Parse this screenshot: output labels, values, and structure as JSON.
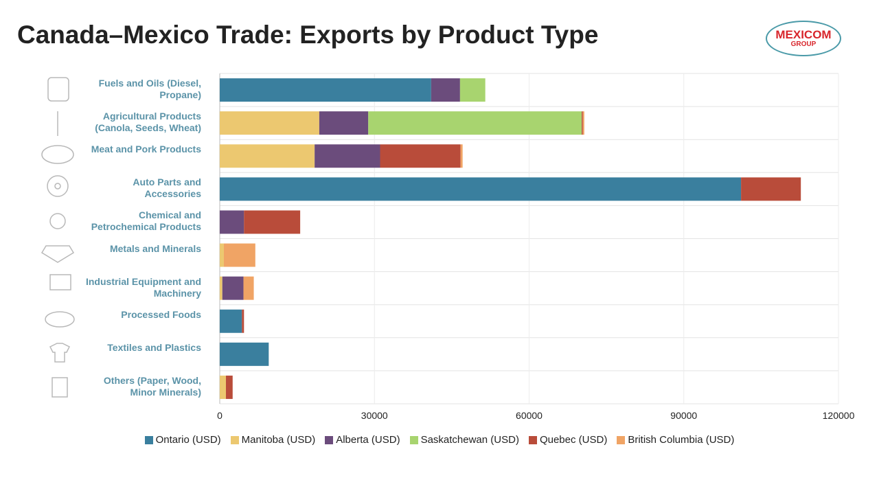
{
  "chart_data": {
    "type": "stacked-bar-horizontal",
    "title": "Canada–Mexico Trade: Exports by Product Type",
    "logo": {
      "name": "MEXICOM",
      "sub": "GROUP"
    },
    "categories": [
      "Fuels and Oils (Diesel, Propane)",
      "Agricultural Products (Canola, Seeds, Wheat)",
      "Meat and Pork Products",
      "Auto Parts and Accessories",
      "Chemical and Petrochemical Products",
      "Metals and Minerals",
      "Industrial Equipment and Machinery",
      "Processed Foods",
      "Textiles and Plastics",
      "Others (Paper, Wood, Minor Minerals)"
    ],
    "series": [
      {
        "name": "Ontario (USD)",
        "color": "#3a7f9e",
        "values": [
          41000,
          null,
          null,
          101100,
          null,
          null,
          null,
          4300,
          9500,
          null
        ]
      },
      {
        "name": "Manitoba (USD)",
        "color": "#ecc870",
        "values": [
          null,
          19300,
          18400,
          null,
          null,
          800,
          500,
          null,
          null,
          1200
        ]
      },
      {
        "name": "Alberta (USD)",
        "color": "#6b4c7c",
        "values": [
          5600,
          9500,
          12700,
          null,
          4700,
          null,
          4100,
          null,
          null,
          null
        ]
      },
      {
        "name": "Saskatchewan (USD)",
        "color": "#a8d46f",
        "values": [
          4900,
          41400,
          null,
          null,
          null,
          null,
          null,
          null,
          null,
          null
        ]
      },
      {
        "name": "Quebec (USD)",
        "color": "#b94c3a",
        "values": [
          null,
          200,
          15600,
          11600,
          10900,
          null,
          null,
          400,
          null,
          1300
        ]
      },
      {
        "name": "British Columbia (USD)",
        "color": "#f0a465",
        "values": [
          null,
          300,
          400,
          null,
          null,
          6100,
          2000,
          null,
          null,
          null
        ]
      }
    ],
    "xlim": [
      0,
      120000
    ],
    "xticks": [
      0,
      30000,
      60000,
      90000,
      120000
    ],
    "grid": true
  }
}
